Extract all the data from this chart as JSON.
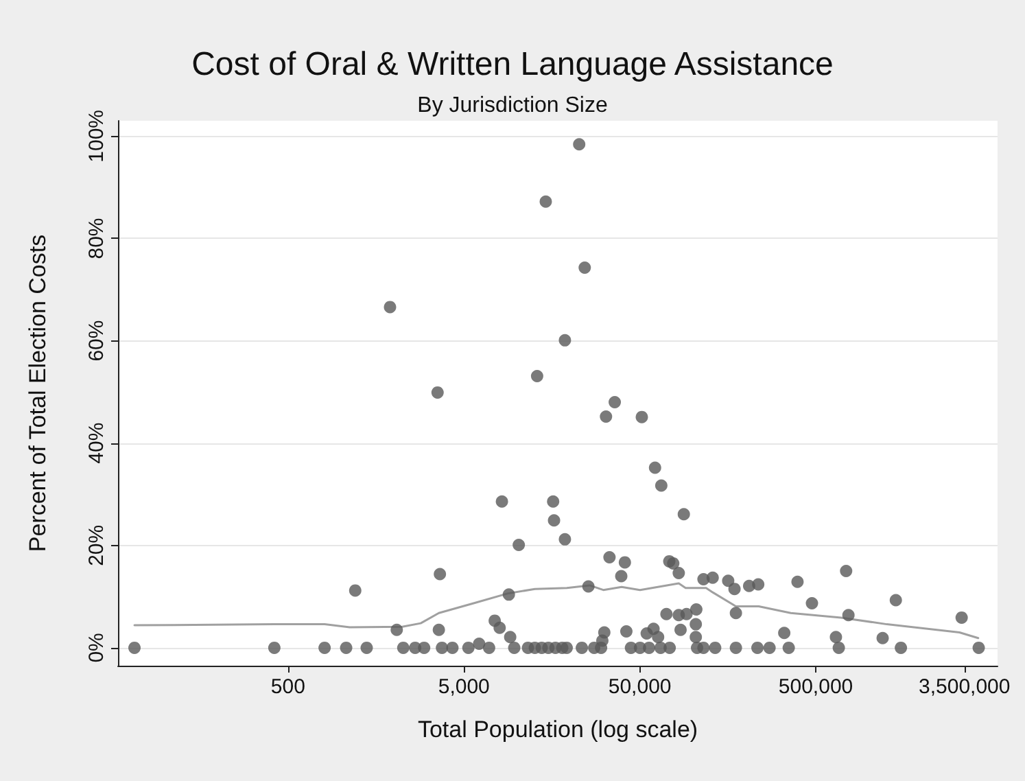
{
  "chart_data": {
    "type": "scatter",
    "title": "Cost of Oral & Written Language Assistance",
    "subtitle": "By Jurisdiction Size",
    "xlabel": "Total Population (log scale)",
    "ylabel": "Percent of Total Election Costs",
    "log": "x",
    "grid": "y",
    "xlim": [
      54,
      5400000
    ],
    "xticks": [
      {
        "value": 500,
        "label": "500"
      },
      {
        "value": 5000,
        "label": "5,000"
      },
      {
        "value": 50000,
        "label": "50,000"
      },
      {
        "value": 500000,
        "label": "500,000"
      },
      {
        "value": 3500000,
        "label": "3,500,000"
      }
    ],
    "ylim": [
      -3.5,
      103
    ],
    "yticks": [
      {
        "value": 0,
        "label": "0%"
      },
      {
        "value": 20,
        "label": "20%"
      },
      {
        "value": 40,
        "label": "40%"
      },
      {
        "value": 60,
        "label": "60%"
      },
      {
        "value": 80,
        "label": "80%"
      },
      {
        "value": 100,
        "label": "100%"
      }
    ],
    "series": [
      {
        "marker": "circle",
        "color": "#595959",
        "x": [
          67,
          418,
          807,
          1070,
          1400,
          1205,
          1900,
          2075,
          2260,
          2640,
          2970,
          3540,
          3650,
          3600,
          3750,
          4300,
          5300,
          6100,
          6950,
          7480,
          7980,
          8220,
          9000,
          9160,
          10250,
          9660,
          11560,
          13840,
          16560,
          19190,
          13030,
          14590,
          16070,
          16260,
          18750,
          18750,
          22600,
          24300,
          32100,
          36000,
          51300,
          61000,
          66200,
          88900,
          25500,
          33600,
          41100,
          39200,
          73500,
          77400,
          83200,
          115000,
          129700,
          158900,
          172600,
          175800,
          209000,
          235500,
          393700,
          475700,
          744000,
          767000,
          1426000,
          3375000,
          4220000,
          651000,
          676000,
          1200000,
          1524000,
          331000,
          351000,
          233000,
          273000,
          175800,
          104000,
          104000,
          105700,
          115000,
          134000,
          92100,
          104700,
          70800,
          83200,
          85200,
          59800,
          54700,
          63500,
          41900,
          44500,
          50100,
          56400,
          65600,
          73900,
          31400,
          30600,
          23400,
          27500,
          30100,
          12650,
          15100,
          18100
        ],
        "values": [
          0,
          0,
          0,
          0,
          0,
          11.2,
          66.6,
          3.5,
          0,
          0,
          0,
          49.9,
          14.4,
          3.5,
          0,
          0,
          0,
          0.8,
          0,
          5.3,
          3.9,
          28.6,
          10.4,
          2.1,
          20.1,
          0,
          0,
          0,
          0,
          0,
          53.1,
          87.2,
          28.6,
          24.9,
          21.2,
          60.1,
          98.4,
          74.3,
          45.2,
          48.0,
          45.1,
          35.2,
          31.7,
          26.1,
          12.0,
          17.7,
          16.7,
          14.0,
          16.9,
          16.5,
          14.6,
          13.4,
          13.7,
          13.1,
          11.5,
          6.8,
          12.1,
          12.4,
          12.9,
          8.7,
          15.0,
          6.4,
          9.3,
          5.9,
          0,
          2.1,
          0,
          1.9,
          0,
          2.9,
          0,
          0,
          0,
          0,
          4.6,
          2.1,
          0,
          0,
          0,
          6.6,
          7.5,
          6.6,
          6.4,
          3.5,
          3.7,
          2.8,
          2.1,
          3.2,
          0,
          0,
          0,
          0,
          0,
          3.0,
          1.4,
          0,
          0,
          0,
          0,
          0,
          0
        ]
      },
      {
        "type": "line",
        "marker": "none",
        "color": "#a0a0a0",
        "x": [
          67,
          418,
          807,
          1122,
          2230,
          2840,
          3600,
          5810,
          8830,
          12650,
          19230,
          25900,
          31000,
          39400,
          50100,
          83200,
          91000,
          119000,
          130300,
          175800,
          237000,
          360600,
          695000,
          1267000,
          3281000,
          4190000
        ],
        "values": [
          4.4,
          4.6,
          4.6,
          4.0,
          4.1,
          4.8,
          6.8,
          8.8,
          10.6,
          11.5,
          11.7,
          12.2,
          11.3,
          11.9,
          11.3,
          12.6,
          11.7,
          11.7,
          10.8,
          8.1,
          8.1,
          6.8,
          5.9,
          4.6,
          3.0,
          1.9
        ]
      }
    ]
  }
}
